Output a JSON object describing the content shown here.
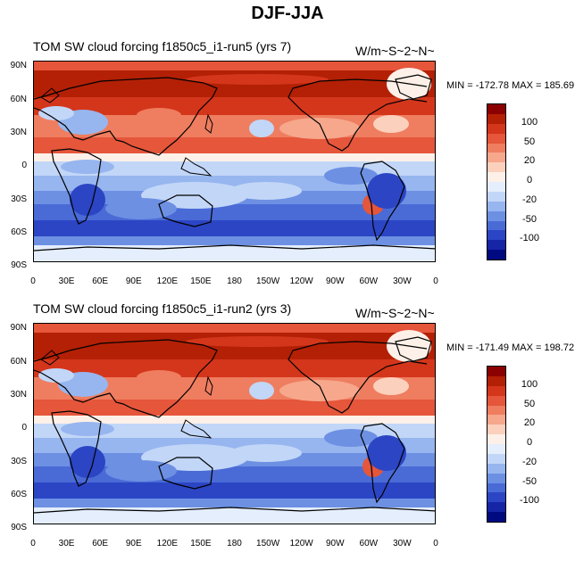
{
  "figure_title": "DJF-JJA",
  "panels": [
    {
      "left_title": "TOM SW cloud forcing   f1850c5_i1-run5 (yrs 7)",
      "right_title": "W/m~S~2~N~",
      "min_label": "MIN = -172.78",
      "max_label": "MAX = 185.69"
    },
    {
      "left_title": "TOM SW cloud forcing   f1850c5_i1-run2 (yrs 3)",
      "right_title": "W/m~S~2~N~",
      "min_label": "MIN = -171.49",
      "max_label": "MAX = 198.72"
    }
  ],
  "lat_labels": [
    "90N",
    "60N",
    "30N",
    "0",
    "30S",
    "60S",
    "90S"
  ],
  "lon_labels": [
    "0",
    "30E",
    "60E",
    "90E",
    "120E",
    "150E",
    "180",
    "150W",
    "120W",
    "90W",
    "60W",
    "30W",
    "0"
  ],
  "colorbar": {
    "labels": [
      "100",
      "50",
      "20",
      "0",
      "-20",
      "-50",
      "-100"
    ],
    "colors": [
      "#8b0000",
      "#b32005",
      "#d4361b",
      "#e5563b",
      "#ef7d5f",
      "#f6a78c",
      "#fbd0bd",
      "#fdf0e8",
      "#e4eefc",
      "#c2d6f7",
      "#97b6ef",
      "#6d90e3",
      "#4a6bd6",
      "#2b45c4",
      "#1525a5",
      "#000a80"
    ]
  }
}
